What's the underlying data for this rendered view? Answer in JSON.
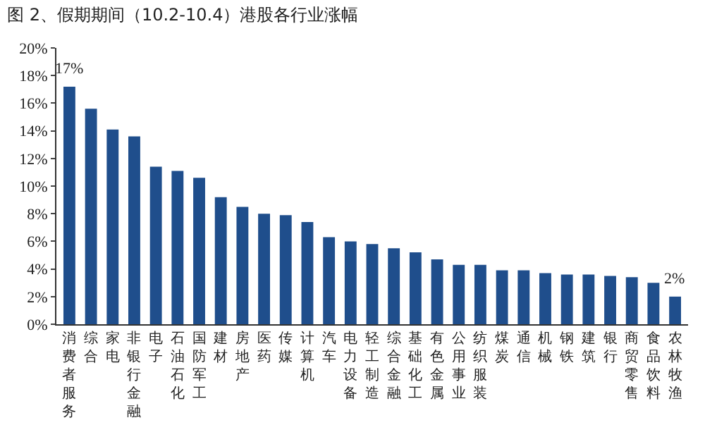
{
  "chart_data": {
    "type": "bar",
    "title": "图 2、假期期间（10.2-10.4）港股各行业涨幅",
    "categories": [
      "消费者服务",
      "综合",
      "家电",
      "非银行金融",
      "电子",
      "石油石化",
      "国防军工",
      "建材",
      "房地产",
      "医药",
      "传媒",
      "计算机",
      "汽车",
      "电力设备",
      "轻工制造",
      "综合金融",
      "基础化工",
      "有色金属",
      "公用事业",
      "纺织服装",
      "煤炭",
      "通信",
      "机械",
      "钢铁",
      "建筑",
      "银行",
      "商贸零售",
      "食品饮料",
      "农林牧渔"
    ],
    "values": [
      17.2,
      15.6,
      14.1,
      13.6,
      11.4,
      11.1,
      10.6,
      9.2,
      8.5,
      8.0,
      7.9,
      7.4,
      6.3,
      6.0,
      5.8,
      5.5,
      5.2,
      4.7,
      4.3,
      4.3,
      3.9,
      3.9,
      3.7,
      3.6,
      3.6,
      3.5,
      3.4,
      3.0,
      2.0
    ],
    "color": "#1f4e8c",
    "ylim": [
      0,
      20
    ],
    "yticks": [
      {
        "value": 0,
        "label": "0%"
      },
      {
        "value": 2,
        "label": "2%"
      },
      {
        "value": 4,
        "label": "4%"
      },
      {
        "value": 6,
        "label": "6%"
      },
      {
        "value": 8,
        "label": "8%"
      },
      {
        "value": 10,
        "label": "10%"
      },
      {
        "value": 12,
        "label": "12%"
      },
      {
        "value": 14,
        "label": "14%"
      },
      {
        "value": 16,
        "label": "16%"
      },
      {
        "value": 18,
        "label": "18%"
      },
      {
        "value": 20,
        "label": "20%"
      }
    ],
    "annotations": [
      {
        "text": "17%",
        "x": "消费者服务",
        "y": 17.2
      },
      {
        "text": "2%",
        "x": "农林牧渔",
        "y": 2.0
      }
    ]
  }
}
